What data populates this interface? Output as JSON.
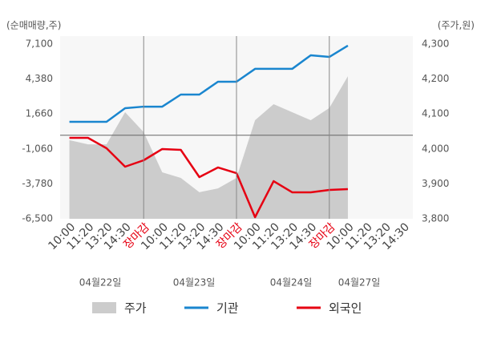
{
  "chart_data": {
    "type": "line",
    "y_label": "(순매매량,주)",
    "y2_label": "(주가,원)",
    "categories": [
      "10:00",
      "11:20",
      "13:20",
      "14:30",
      "장마감",
      "10:00",
      "11:20",
      "13:20",
      "14:30",
      "장마감",
      "10:00",
      "11:20",
      "13:20",
      "14:30",
      "장마감",
      "10:00",
      "11:20",
      "13:20",
      "14:30"
    ],
    "category_colors": [
      "#444",
      "#444",
      "#444",
      "#444",
      "#e60012",
      "#444",
      "#444",
      "#444",
      "#444",
      "#e60012",
      "#444",
      "#444",
      "#444",
      "#444",
      "#e60012",
      "#444",
      "#444",
      "#444",
      "#444"
    ],
    "dates": [
      "04월22일",
      "04월23일",
      "04월24일",
      "04월27일"
    ],
    "series": [
      {
        "name": "주가",
        "color": "#cccccc",
        "axis": "y2",
        "kind": "area",
        "values": [
          4025,
          4013,
          4013,
          4105,
          4048,
          3933,
          3917,
          3876,
          3887,
          3917,
          4082,
          4128,
          4105,
          4082,
          4117,
          4208,
          null,
          null,
          null
        ]
      },
      {
        "name": "기관",
        "color": "#1a86cf",
        "kind": "line",
        "values": [
          1050,
          1050,
          1050,
          2110,
          2230,
          2230,
          3170,
          3170,
          4170,
          4170,
          5170,
          5170,
          5170,
          6230,
          6100,
          6980,
          null,
          null,
          null
        ]
      },
      {
        "name": "외국인",
        "color": "#e60012",
        "kind": "line",
        "values": [
          -200,
          -200,
          -1010,
          -2445,
          -1946,
          -1070,
          -1135,
          -3255,
          -2505,
          -2945,
          -6375,
          -3570,
          -4440,
          -4440,
          -4255,
          -4190,
          null,
          null,
          null
        ]
      }
    ],
    "ylim": [
      -6500,
      7100
    ],
    "yticks": [
      {
        "value": -6500,
        "label": "-6,500"
      },
      {
        "value": -3780,
        "label": "-3,780"
      },
      {
        "value": -1060,
        "label": "-1,060"
      },
      {
        "value": 1660,
        "label": "1,660"
      },
      {
        "value": 4380,
        "label": "4,380"
      },
      {
        "value": 7100,
        "label": "7,100"
      }
    ],
    "y2lim": [
      3800,
      4300
    ],
    "y2ticks": [
      {
        "value": 3800,
        "label": "3,800"
      },
      {
        "value": 3900,
        "label": "3,900"
      },
      {
        "value": 4000,
        "label": "4,000"
      },
      {
        "value": 4100,
        "label": "4,100"
      },
      {
        "value": 4200,
        "label": "4,200"
      },
      {
        "value": 4300,
        "label": "4,300"
      }
    ],
    "zero_line": 0
  }
}
